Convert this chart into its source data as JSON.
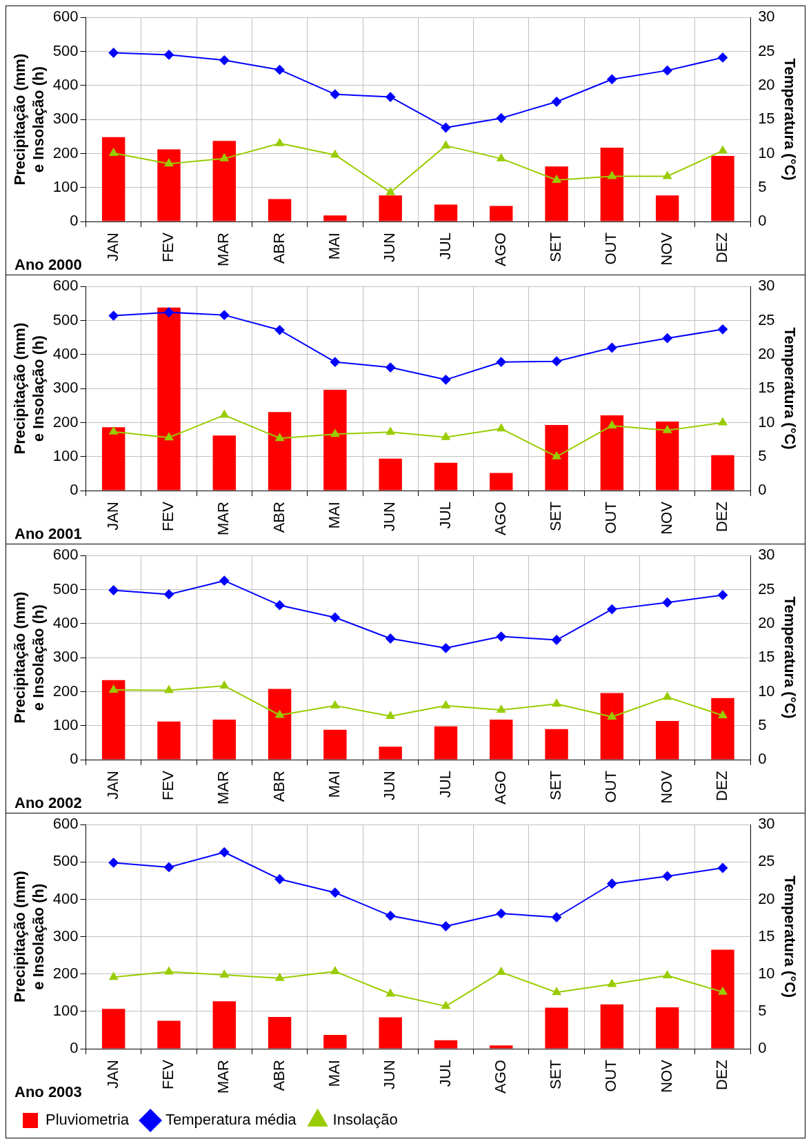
{
  "chart_data": [
    {
      "type": "bar",
      "title": "Ano 2000",
      "ylabel": "Precipitação (mm)\ne Insolação (h)",
      "y2label": "Temperatura (°C)",
      "categories": [
        "JAN",
        "FEV",
        "MAR",
        "ABR",
        "MAI",
        "JUN",
        "JUL",
        "AGO",
        "SET",
        "OUT",
        "NOV",
        "DEZ"
      ],
      "ylim": [
        0,
        600
      ],
      "yticks": [
        0,
        100,
        200,
        300,
        400,
        500,
        600
      ],
      "y2lim": [
        0,
        30
      ],
      "y2ticks": [
        0,
        5,
        10,
        15,
        20,
        25,
        30
      ],
      "grid": true,
      "series": [
        {
          "color": "#ff0000",
          "values": [
            248,
            212,
            237,
            66,
            18,
            77,
            50,
            46,
            162,
            217,
            77,
            193
          ]
        },
        {
          "type": "line",
          "axis": "y2",
          "marker": "diamond",
          "color": "#0000ff",
          "values": [
            24.8,
            24.5,
            23.7,
            22.3,
            18.7,
            18.3,
            13.8,
            15.2,
            17.6,
            20.9,
            22.2,
            24.1
          ]
        },
        {
          "type": "line",
          "marker": "triangle",
          "color": "#99cc00",
          "values": [
            201,
            170,
            185,
            230,
            196,
            86,
            223,
            185,
            122,
            133,
            133,
            208
          ]
        }
      ]
    },
    {
      "type": "bar",
      "title": "Ano 2001",
      "ylabel": "Precipitação (mm)\ne Insolação (h)",
      "y2label": "Temperatura (°C)",
      "categories": [
        "JAN",
        "FEV",
        "MAR",
        "ABR",
        "MAI",
        "JUN",
        "JUL",
        "AGO",
        "SET",
        "OUT",
        "NOV",
        "DEZ"
      ],
      "ylim": [
        0,
        600
      ],
      "yticks": [
        0,
        100,
        200,
        300,
        400,
        500,
        600
      ],
      "y2lim": [
        0,
        30
      ],
      "y2ticks": [
        0,
        5,
        10,
        15,
        20,
        25,
        30
      ],
      "grid": true,
      "series": [
        {
          "color": "#ff0000",
          "values": [
            186,
            538,
            162,
            231,
            296,
            94,
            82,
            52,
            193,
            221,
            203,
            104
          ]
        },
        {
          "type": "line",
          "axis": "y2",
          "marker": "diamond",
          "color": "#0000ff",
          "values": [
            25.7,
            26.2,
            25.8,
            23.6,
            18.9,
            18.1,
            16.3,
            18.9,
            19.0,
            21.0,
            22.4,
            23.7
          ]
        },
        {
          "type": "line",
          "marker": "triangle",
          "color": "#99cc00",
          "values": [
            173,
            156,
            222,
            154,
            166,
            172,
            157,
            182,
            100,
            191,
            177,
            200
          ]
        }
      ]
    },
    {
      "type": "bar",
      "title": "Ano 2002",
      "ylabel": "Precipitação (mm)\ne Insolação (h)",
      "y2label": "Temperatura (°C)",
      "categories": [
        "JAN",
        "FEV",
        "MAR",
        "ABR",
        "MAI",
        "JUN",
        "JUL",
        "AGO",
        "SET",
        "OUT",
        "NOV",
        "DEZ"
      ],
      "ylim": [
        0,
        600
      ],
      "yticks": [
        0,
        100,
        200,
        300,
        400,
        500,
        600
      ],
      "y2lim": [
        0,
        30
      ],
      "y2ticks": [
        0,
        5,
        10,
        15,
        20,
        25,
        30
      ],
      "grid": true,
      "series": [
        {
          "color": "#ff0000",
          "values": [
            234,
            112,
            118,
            208,
            88,
            38,
            98,
            118,
            90,
            196,
            114,
            181
          ]
        },
        {
          "type": "line",
          "axis": "y2",
          "marker": "diamond",
          "color": "#0000ff",
          "values": [
            24.9,
            24.3,
            26.3,
            22.7,
            20.9,
            17.8,
            16.4,
            18.1,
            17.6,
            22.1,
            23.1,
            24.2
          ]
        },
        {
          "type": "line",
          "marker": "triangle",
          "color": "#99cc00",
          "values": [
            205,
            204,
            217,
            131,
            159,
            128,
            159,
            146,
            164,
            126,
            184,
            130
          ]
        }
      ]
    },
    {
      "type": "bar",
      "title": "Ano 2003",
      "ylabel": "Precipitação (mm)\ne Insolação (h)",
      "y2label": "Temperatura (°C)",
      "categories": [
        "JAN",
        "FEV",
        "MAR",
        "ABR",
        "MAI",
        "JUN",
        "JUL",
        "AGO",
        "SET",
        "OUT",
        "NOV",
        "DEZ"
      ],
      "ylim": [
        0,
        600
      ],
      "yticks": [
        0,
        100,
        200,
        300,
        400,
        500,
        600
      ],
      "y2lim": [
        0,
        30
      ],
      "y2ticks": [
        0,
        5,
        10,
        15,
        20,
        25,
        30
      ],
      "grid": true,
      "legend": "bottom left",
      "series": [
        {
          "name": "Pluviometria",
          "color": "#ff0000",
          "values": [
            107,
            75,
            127,
            85,
            37,
            84,
            23,
            9,
            110,
            119,
            111,
            265
          ]
        },
        {
          "type": "line",
          "axis": "y2",
          "marker": "diamond",
          "name": "Temperatura média",
          "color": "#0000ff",
          "values": [
            24.9,
            24.3,
            26.3,
            22.7,
            20.9,
            17.8,
            16.4,
            18.1,
            17.6,
            22.1,
            23.1,
            24.2
          ]
        },
        {
          "type": "line",
          "marker": "triangle",
          "name": "Insolação",
          "color": "#99cc00",
          "values": [
            192,
            206,
            198,
            189,
            207,
            147,
            114,
            205,
            151,
            173,
            196,
            152
          ]
        }
      ]
    }
  ]
}
